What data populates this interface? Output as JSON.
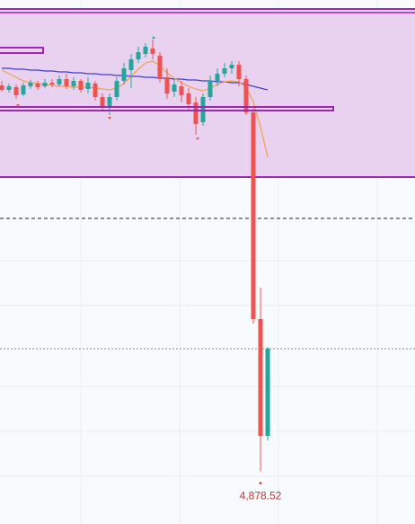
{
  "chart_data": {
    "type": "candlestick",
    "ylim": [
      4820,
      5403
    ],
    "up_color": "#26a69a",
    "down_color": "#ef5350",
    "candles": {
      "open": [
        5308,
        5303,
        5306,
        5298,
        5307,
        5310,
        5307,
        5311,
        5309,
        5315,
        5307,
        5313,
        5304,
        5310,
        5295,
        5285,
        5295,
        5313,
        5325,
        5337,
        5343,
        5349,
        5341,
        5317,
        5301,
        5307,
        5299,
        5289,
        5267,
        5295,
        5313,
        5321,
        5327,
        5331,
        5315,
        5278,
        5048,
        4918
      ],
      "high": [
        5313,
        5310,
        5309,
        5311,
        5314,
        5313,
        5315,
        5315,
        5319,
        5321,
        5317,
        5315,
        5317,
        5313,
        5299,
        5299,
        5317,
        5333,
        5343,
        5351,
        5355,
        5359,
        5345,
        5327,
        5315,
        5313,
        5305,
        5295,
        5299,
        5319,
        5327,
        5333,
        5335,
        5335,
        5319,
        5283,
        5083,
        5017
      ],
      "low": [
        5301,
        5300,
        5293,
        5296,
        5304,
        5303,
        5305,
        5306,
        5307,
        5304,
        5303,
        5300,
        5299,
        5291,
        5279,
        5275,
        5291,
        5309,
        5305,
        5333,
        5339,
        5337,
        5311,
        5293,
        5295,
        5289,
        5281,
        5253,
        5263,
        5291,
        5307,
        5317,
        5321,
        5307,
        5275,
        5043,
        4878.52,
        4913
      ],
      "close": [
        5303,
        5307,
        5297,
        5308,
        5311,
        5306,
        5311,
        5309,
        5315,
        5307,
        5313,
        5303,
        5311,
        5295,
        5285,
        5295,
        5313,
        5327,
        5337,
        5345,
        5351,
        5343,
        5315,
        5299,
        5309,
        5297,
        5287,
        5265,
        5295,
        5313,
        5321,
        5327,
        5331,
        5315,
        5278,
        5048,
        4918,
        5015
      ]
    },
    "ma_lines": [
      {
        "color": "#3f3fd4",
        "values": [
          5327,
          5327,
          5326,
          5326,
          5325,
          5325,
          5324,
          5324,
          5323,
          5323,
          5322,
          5322,
          5321,
          5321,
          5320,
          5320,
          5319,
          5319,
          5318,
          5318,
          5317,
          5317,
          5316,
          5316,
          5315,
          5315,
          5314,
          5314,
          5313,
          5313,
          5312,
          5312,
          5311,
          5311,
          5309,
          5307,
          5305,
          5303
        ]
      },
      {
        "color": "#f0a050",
        "values": [
          5325,
          5321,
          5317,
          5313,
          5311,
          5310,
          5309,
          5308,
          5307,
          5307,
          5306,
          5306,
          5306,
          5305,
          5304,
          5303,
          5305,
          5310,
          5318,
          5326,
          5333,
          5335,
          5330,
          5322,
          5316,
          5311,
          5307,
          5304,
          5302,
          5305,
          5309,
          5312,
          5313,
          5312,
          5306,
          5290,
          5262,
          5228
        ]
      }
    ],
    "low_label": "4,878.52",
    "label_color": "#d32f2f"
  }
}
